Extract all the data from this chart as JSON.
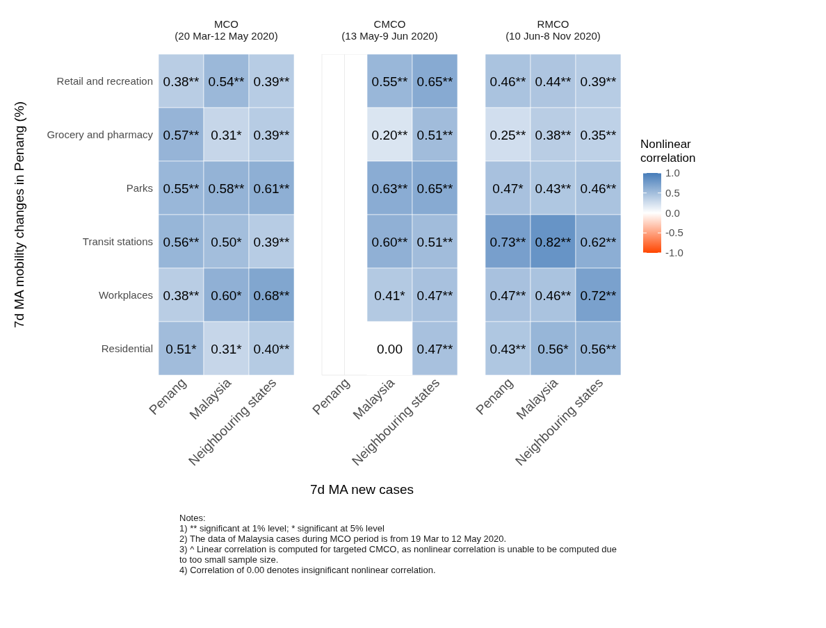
{
  "chart_data": [
    {
      "type": "heatmap",
      "title": "MCO\n(20 Mar-12 May 2020)",
      "ylabel": "7d MA mobility changes in Penang (%)",
      "categories": [
        "Penang",
        "Malaysia",
        "Neighbouring states"
      ],
      "y_categories": [
        "Retail and recreation",
        "Grocery and pharmacy",
        "Parks",
        "Transit stations",
        "Workplaces",
        "Residential"
      ],
      "cells": [
        [
          0.38,
          0.54,
          0.39
        ],
        [
          0.57,
          0.31,
          0.39
        ],
        [
          0.55,
          0.58,
          0.61
        ],
        [
          0.56,
          0.5,
          0.39
        ],
        [
          0.38,
          0.6,
          0.68
        ],
        [
          0.51,
          0.31,
          0.4
        ]
      ],
      "cell_labels": [
        [
          "0.38**",
          "0.54**",
          "0.39**"
        ],
        [
          "0.57**",
          "0.31*",
          "0.39**"
        ],
        [
          "0.55**",
          "0.58**",
          "0.61**"
        ],
        [
          "0.56**",
          "0.50*",
          "0.39**"
        ],
        [
          "0.38**",
          "0.60*",
          "0.68**"
        ],
        [
          "0.51*",
          "0.31*",
          "0.40**"
        ]
      ],
      "annotations": [
        "Notes:",
        "1) ** significant at 1% level; * significant at 5% level",
        "2) The data of Malaysia cases during MCO period is from 19 Mar to 12 May 2020.",
        "3) ^ Linear correlation is computed for targeted CMCO, as nonlinear correlation is unable to be computed due to too small sample size.",
        "4) Correlation of 0.00 denotes insignificant nonlinear correlation."
      ]
    },
    {
      "type": "heatmap",
      "title": "CMCO\n(13 May-9 Jun 2020)",
      "xlabel": "7d MA new cases",
      "grid": true,
      "tick_labels": "x",
      "categories": [
        "Penang",
        "Malaysia",
        "Neighbouring states"
      ],
      "y_categories": [
        null,
        null,
        null,
        null,
        null,
        null
      ],
      "cells": [
        [
          null,
          0.55,
          0.65
        ],
        [
          null,
          0.2,
          0.51
        ],
        [
          null,
          0.63,
          0.65
        ],
        [
          null,
          0.6,
          0.51
        ],
        [
          null,
          0.41,
          0.47
        ],
        [
          null,
          0.0,
          0.47
        ]
      ],
      "cell_labels": [
        [
          null,
          "0.55**",
          "0.65**"
        ],
        [
          null,
          "0.20**",
          "0.51**"
        ],
        [
          null,
          "0.63**",
          "0.65**"
        ],
        [
          null,
          "0.60**",
          "0.51**"
        ],
        [
          null,
          "0.41*",
          "0.47**"
        ],
        [
          null,
          "0.00",
          "0.47**"
        ]
      ]
    },
    {
      "type": "heatmap",
      "title": "RMCO\n(10 Jun-8 Nov 2020)",
      "tick_labels": "x",
      "clabel": "Nonlinear correlation",
      "clim": [
        -1,
        1
      ],
      "cticks": [
        {
          "value": 1,
          "label": "1.0"
        },
        {
          "value": 0.5,
          "label": "0.5"
        },
        {
          "value": 0,
          "label": "0.0"
        },
        {
          "value": -0.5,
          "label": "-0.5"
        },
        {
          "value": -1,
          "label": "-1.0"
        }
      ],
      "categories": [
        "Penang",
        "Malaysia",
        "Neighbouring states"
      ],
      "y_categories": [
        null,
        null,
        null,
        null,
        null,
        null
      ],
      "cells": [
        [
          0.46,
          0.44,
          0.39
        ],
        [
          0.25,
          0.38,
          0.35
        ],
        [
          0.47,
          0.43,
          0.46
        ],
        [
          0.73,
          0.82,
          0.62
        ],
        [
          0.47,
          0.46,
          0.72
        ],
        [
          0.43,
          0.56,
          0.56
        ]
      ],
      "cell_labels": [
        [
          "0.46**",
          "0.44**",
          "0.39**"
        ],
        [
          "0.25**",
          "0.38**",
          "0.35**"
        ],
        [
          "0.47*",
          "0.43**",
          "0.46**"
        ],
        [
          "0.73**",
          "0.82**",
          "0.62**"
        ],
        [
          "0.47**",
          "0.46**",
          "0.72**"
        ],
        [
          "0.43**",
          "0.56*",
          "0.56**"
        ]
      ]
    }
  ]
}
